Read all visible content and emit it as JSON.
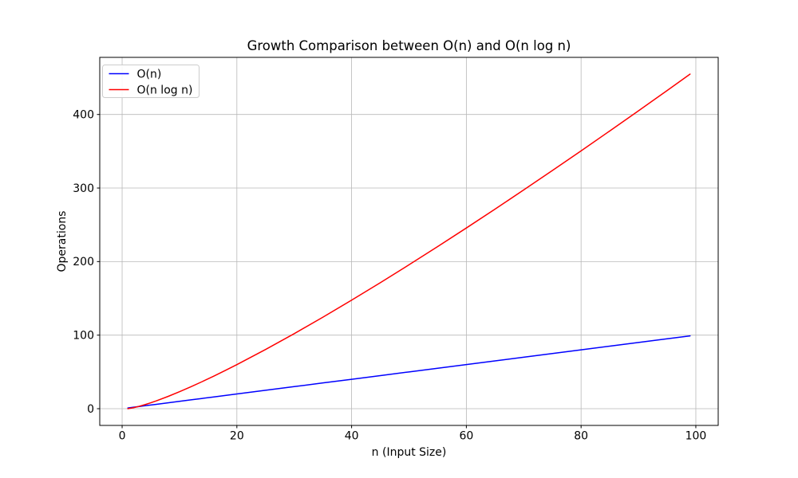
{
  "figure": {
    "background": "#ffffff",
    "spine_color": "#000000"
  },
  "chart_data": {
    "type": "line",
    "title": "Growth Comparison between O(n) and O(n log n)",
    "xlabel": "n (Input Size)",
    "ylabel": "Operations",
    "x": [
      1,
      2,
      3,
      4,
      5,
      6,
      8,
      10,
      12,
      14,
      16,
      18,
      20,
      25,
      30,
      35,
      40,
      45,
      50,
      55,
      60,
      65,
      70,
      75,
      80,
      85,
      90,
      95,
      99
    ],
    "series": [
      {
        "name": "O(n)",
        "color": "#0000ff",
        "values": [
          1,
          2,
          3,
          4,
          5,
          6,
          8,
          10,
          12,
          14,
          16,
          18,
          20,
          25,
          30,
          35,
          40,
          45,
          50,
          55,
          60,
          65,
          70,
          75,
          80,
          85,
          90,
          95,
          99
        ]
      },
      {
        "name": "O(n log n)",
        "color": "#ff0000",
        "values": [
          0,
          1.39,
          3.3,
          5.55,
          8.05,
          10.75,
          16.64,
          23.03,
          29.82,
          36.95,
          44.36,
          52.03,
          59.91,
          80.47,
          102.04,
          124.44,
          147.56,
          171.3,
          195.6,
          220.4,
          245.66,
          271.34,
          297.39,
          323.81,
          350.56,
          377.63,
          404.98,
          432.62,
          454.91
        ]
      }
    ],
    "xlim": [
      -3.9,
      103.9
    ],
    "ylim": [
      -22.75,
      477.66
    ],
    "xticks": [
      0,
      20,
      40,
      60,
      80,
      100
    ],
    "yticks": [
      0,
      100,
      200,
      300,
      400
    ],
    "grid": true,
    "grid_color": "#b8b8b8",
    "line_width": 1.5,
    "legend": {
      "position": "upper left",
      "border_color": "#cccccc",
      "background": "#ffffff"
    }
  }
}
